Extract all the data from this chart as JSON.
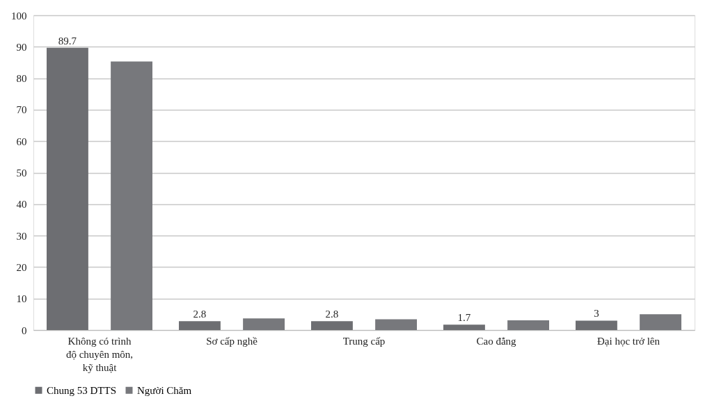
{
  "chart_data": {
    "type": "bar",
    "categories": [
      "Không có trình độ chuyên môn, kỹ thuật",
      "Sơ cấp nghề",
      "Trung cấp",
      "Cao đẳng",
      "Đại học trở lên"
    ],
    "series": [
      {
        "name": "Chung 53 DTTS",
        "color": "#6d6e72",
        "values": [
          89.7,
          2.8,
          2.8,
          1.7,
          3
        ],
        "value_labels": [
          "89.7",
          "2.8",
          "2.8",
          "1.7",
          "3"
        ]
      },
      {
        "name": "Người Chăm",
        "color": "#77787c",
        "values": [
          85.3,
          3.7,
          3.4,
          3.1,
          5
        ]
      }
    ],
    "ylim": [
      0,
      100
    ],
    "yticks": [
      0,
      10,
      20,
      30,
      40,
      50,
      60,
      70,
      80,
      90,
      100
    ],
    "grid": "y",
    "legend": "bottom"
  }
}
